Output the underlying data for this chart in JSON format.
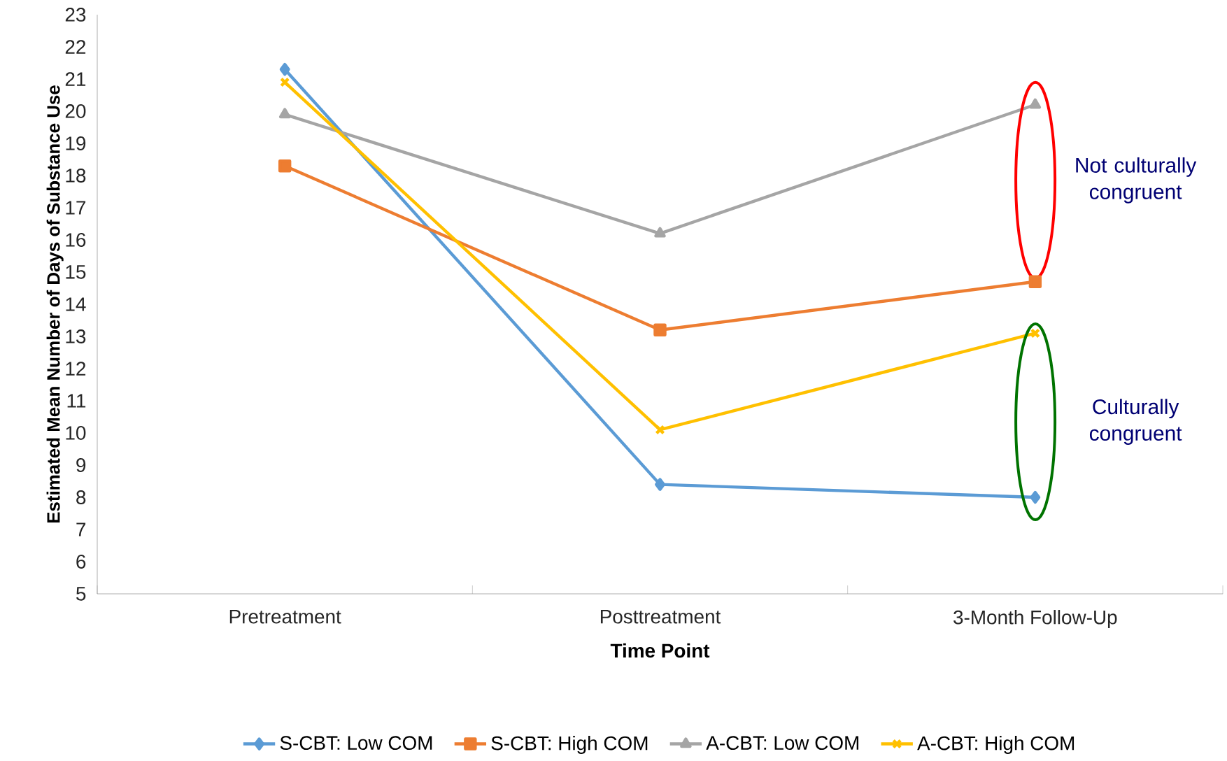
{
  "chart_data": {
    "type": "line",
    "xlabel": "Time Point",
    "ylabel": "Estimated Mean Number of Days of Substance Use",
    "categories": [
      "Pretreatment",
      "Posttreatment",
      "3-Month Follow-Up"
    ],
    "ylim": [
      5,
      23
    ],
    "yticks": [
      5,
      6,
      7,
      8,
      9,
      10,
      11,
      12,
      13,
      14,
      15,
      16,
      17,
      18,
      19,
      20,
      21,
      22,
      23
    ],
    "legend": "bottom",
    "grid": false,
    "line_style": "solid",
    "series": [
      {
        "name": "S-CBT: Low COM",
        "color": "#5b9bd5",
        "marker": "diamond",
        "values": [
          21.3,
          8.4,
          8.0
        ]
      },
      {
        "name": "S-CBT: High COM",
        "color": "#ed7d31",
        "marker": "square",
        "values": [
          18.3,
          13.2,
          14.7
        ]
      },
      {
        "name": "A-CBT: Low COM",
        "color": "#a5a5a5",
        "marker": "triangle",
        "values": [
          19.9,
          16.2,
          20.2
        ]
      },
      {
        "name": "A-CBT: High COM",
        "color": "#ffc000",
        "marker": "cross",
        "values": [
          20.9,
          10.1,
          13.1
        ]
      }
    ],
    "annotations": [
      "Not culturally congruent",
      "Culturally congruent"
    ]
  }
}
